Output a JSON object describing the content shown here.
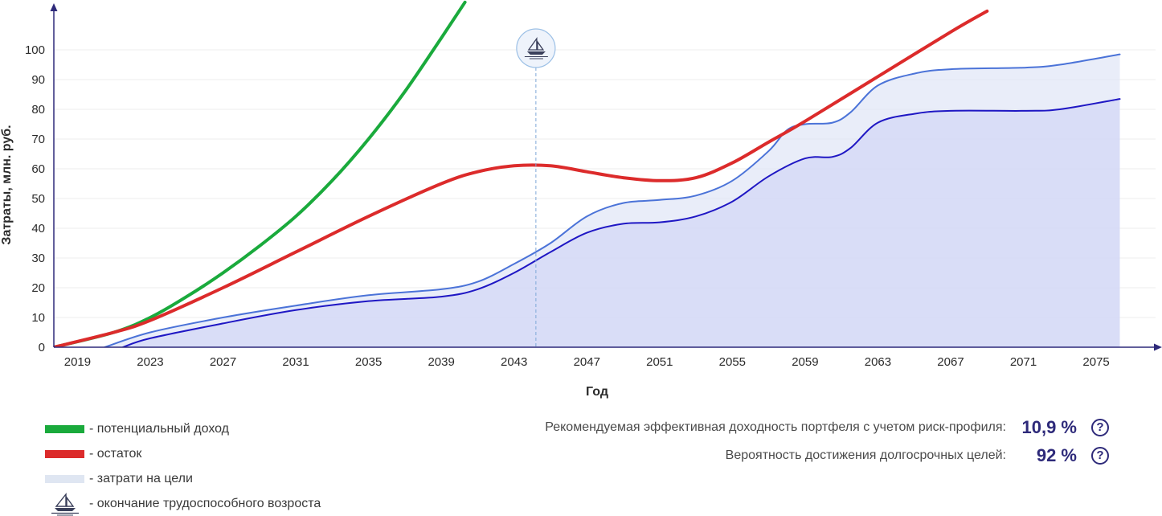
{
  "chart_data": {
    "type": "line",
    "ylabel": "Затраты, млн. руб.",
    "xlabel": "Год",
    "ylim": [
      0,
      110
    ],
    "xlim": [
      2017.7,
      2078
    ],
    "yticks": [
      0,
      10,
      20,
      30,
      40,
      50,
      60,
      70,
      80,
      90,
      100
    ],
    "xticks": [
      2019,
      2023,
      2027,
      2031,
      2035,
      2039,
      2043,
      2047,
      2051,
      2055,
      2059,
      2063,
      2067,
      2071,
      2075
    ],
    "grid": "horizontal",
    "marker": {
      "name": "окончание трудоспособного возроста",
      "year": 2044.2,
      "icon": "sailboat-icon"
    },
    "series": [
      {
        "name": "потенциальный доход",
        "color": "#1aaa3c",
        "points": [
          [
            2017.7,
            0
          ],
          [
            2021,
            5
          ],
          [
            2023,
            10
          ],
          [
            2025,
            17
          ],
          [
            2027,
            25
          ],
          [
            2029,
            34
          ],
          [
            2031,
            44
          ],
          [
            2033,
            56
          ],
          [
            2035,
            70
          ],
          [
            2037,
            86
          ],
          [
            2039,
            104
          ],
          [
            2040.3,
            116
          ]
        ]
      },
      {
        "name": "остаток",
        "color": "#dc2b2b",
        "points": [
          [
            2017.7,
            0
          ],
          [
            2021,
            5
          ],
          [
            2023,
            9
          ],
          [
            2027,
            20
          ],
          [
            2031,
            32
          ],
          [
            2035,
            44
          ],
          [
            2039,
            55
          ],
          [
            2041,
            59
          ],
          [
            2043,
            61
          ],
          [
            2045,
            61
          ],
          [
            2047,
            59
          ],
          [
            2049,
            57
          ],
          [
            2051,
            56
          ],
          [
            2053,
            57
          ],
          [
            2055,
            62
          ],
          [
            2057,
            69
          ],
          [
            2059,
            76
          ],
          [
            2063,
            91
          ],
          [
            2067,
            106
          ],
          [
            2069,
            113
          ]
        ]
      },
      {
        "name": "затрати на цели",
        "color": "#4b73d8",
        "fill": "#dfe6f7",
        "points": [
          [
            2020.5,
            0
          ],
          [
            2023,
            5
          ],
          [
            2027,
            10
          ],
          [
            2031,
            14
          ],
          [
            2035,
            17.5
          ],
          [
            2039,
            19.5
          ],
          [
            2041,
            22
          ],
          [
            2043,
            28
          ],
          [
            2045,
            35
          ],
          [
            2047,
            44
          ],
          [
            2049,
            48.5
          ],
          [
            2051,
            49.5
          ],
          [
            2053,
            51
          ],
          [
            2055,
            56
          ],
          [
            2057,
            66
          ],
          [
            2058,
            73
          ],
          [
            2059,
            75
          ],
          [
            2060.5,
            75.5
          ],
          [
            2061.5,
            79
          ],
          [
            2063,
            88
          ],
          [
            2065,
            92
          ],
          [
            2067,
            93.5
          ],
          [
            2071,
            94
          ],
          [
            2073,
            95
          ],
          [
            2076.3,
            98.5
          ]
        ]
      },
      {
        "name": "",
        "color": "#1f17c4",
        "fill": "#d3d7f6",
        "points": [
          [
            2021.5,
            0
          ],
          [
            2023,
            3
          ],
          [
            2027,
            8
          ],
          [
            2031,
            12.5
          ],
          [
            2035,
            15.5
          ],
          [
            2039,
            17
          ],
          [
            2041,
            19.5
          ],
          [
            2043,
            25
          ],
          [
            2045,
            32
          ],
          [
            2047,
            38.5
          ],
          [
            2049,
            41.5
          ],
          [
            2051,
            42
          ],
          [
            2053,
            44
          ],
          [
            2055,
            49
          ],
          [
            2057,
            57.5
          ],
          [
            2059,
            63.5
          ],
          [
            2060.5,
            64
          ],
          [
            2061.5,
            67
          ],
          [
            2063,
            75.5
          ],
          [
            2065,
            78.5
          ],
          [
            2067,
            79.5
          ],
          [
            2071,
            79.5
          ],
          [
            2073,
            80
          ],
          [
            2076.3,
            83.5
          ]
        ]
      }
    ]
  },
  "legend": {
    "income": "- потенциальный доход",
    "remainder": "- остаток",
    "goals": "- затрати на цели",
    "retirement": "- окончание трудоспособного возроста"
  },
  "stats": {
    "yield_label": "Рекомендуемая эффективная доходность портфеля с учетом риск-профиля:",
    "yield_value": "10,9 %",
    "prob_label": "Вероятность достижения долгосрочных целей:",
    "prob_value": "92 %",
    "help_glyph": "?"
  }
}
